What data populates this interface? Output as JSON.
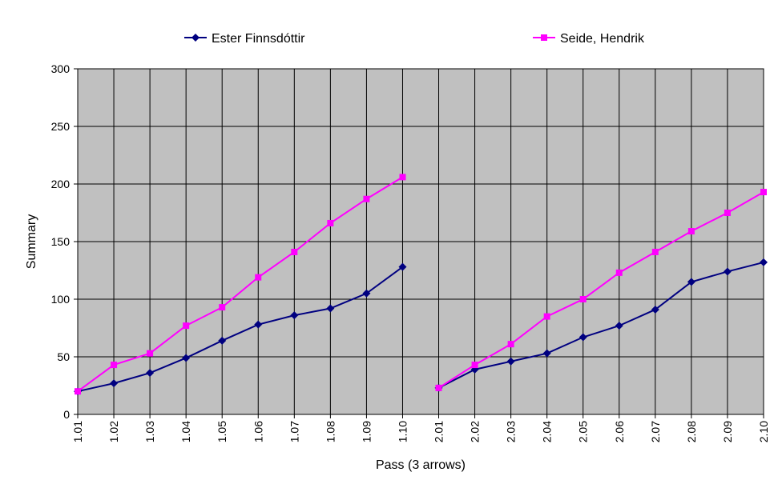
{
  "chart_data": {
    "type": "line",
    "title": "",
    "xlabel": "Pass (3 arrows)",
    "ylabel": "Summary",
    "ylim": [
      0,
      300
    ],
    "yticks": [
      0,
      50,
      100,
      150,
      200,
      250,
      300
    ],
    "categories": [
      "1.01",
      "1.02",
      "1.03",
      "1.04",
      "1.05",
      "1.06",
      "1.07",
      "1.08",
      "1.09",
      "1.10",
      "2.01",
      "2.02",
      "2.03",
      "2.04",
      "2.05",
      "2.06",
      "2.07",
      "2.08",
      "2.09",
      "2.10"
    ],
    "grid": true,
    "legend": "top",
    "plot_background": "#C0C0C0",
    "series": [
      {
        "name": "Ester Finnsdóttir",
        "color": "#000080",
        "marker": "diamond",
        "values": [
          20,
          27,
          36,
          49,
          64,
          78,
          86,
          92,
          105,
          128,
          23,
          39,
          46,
          53,
          67,
          77,
          91,
          115,
          124,
          132
        ]
      },
      {
        "name": "Seide, Hendrik",
        "color": "#FF00FF",
        "marker": "square",
        "values": [
          20,
          43,
          53,
          77,
          93,
          119,
          141,
          166,
          187,
          206,
          23,
          43,
          61,
          85,
          100,
          123,
          141,
          159,
          175,
          193
        ]
      }
    ],
    "gap_after_index": 9
  }
}
